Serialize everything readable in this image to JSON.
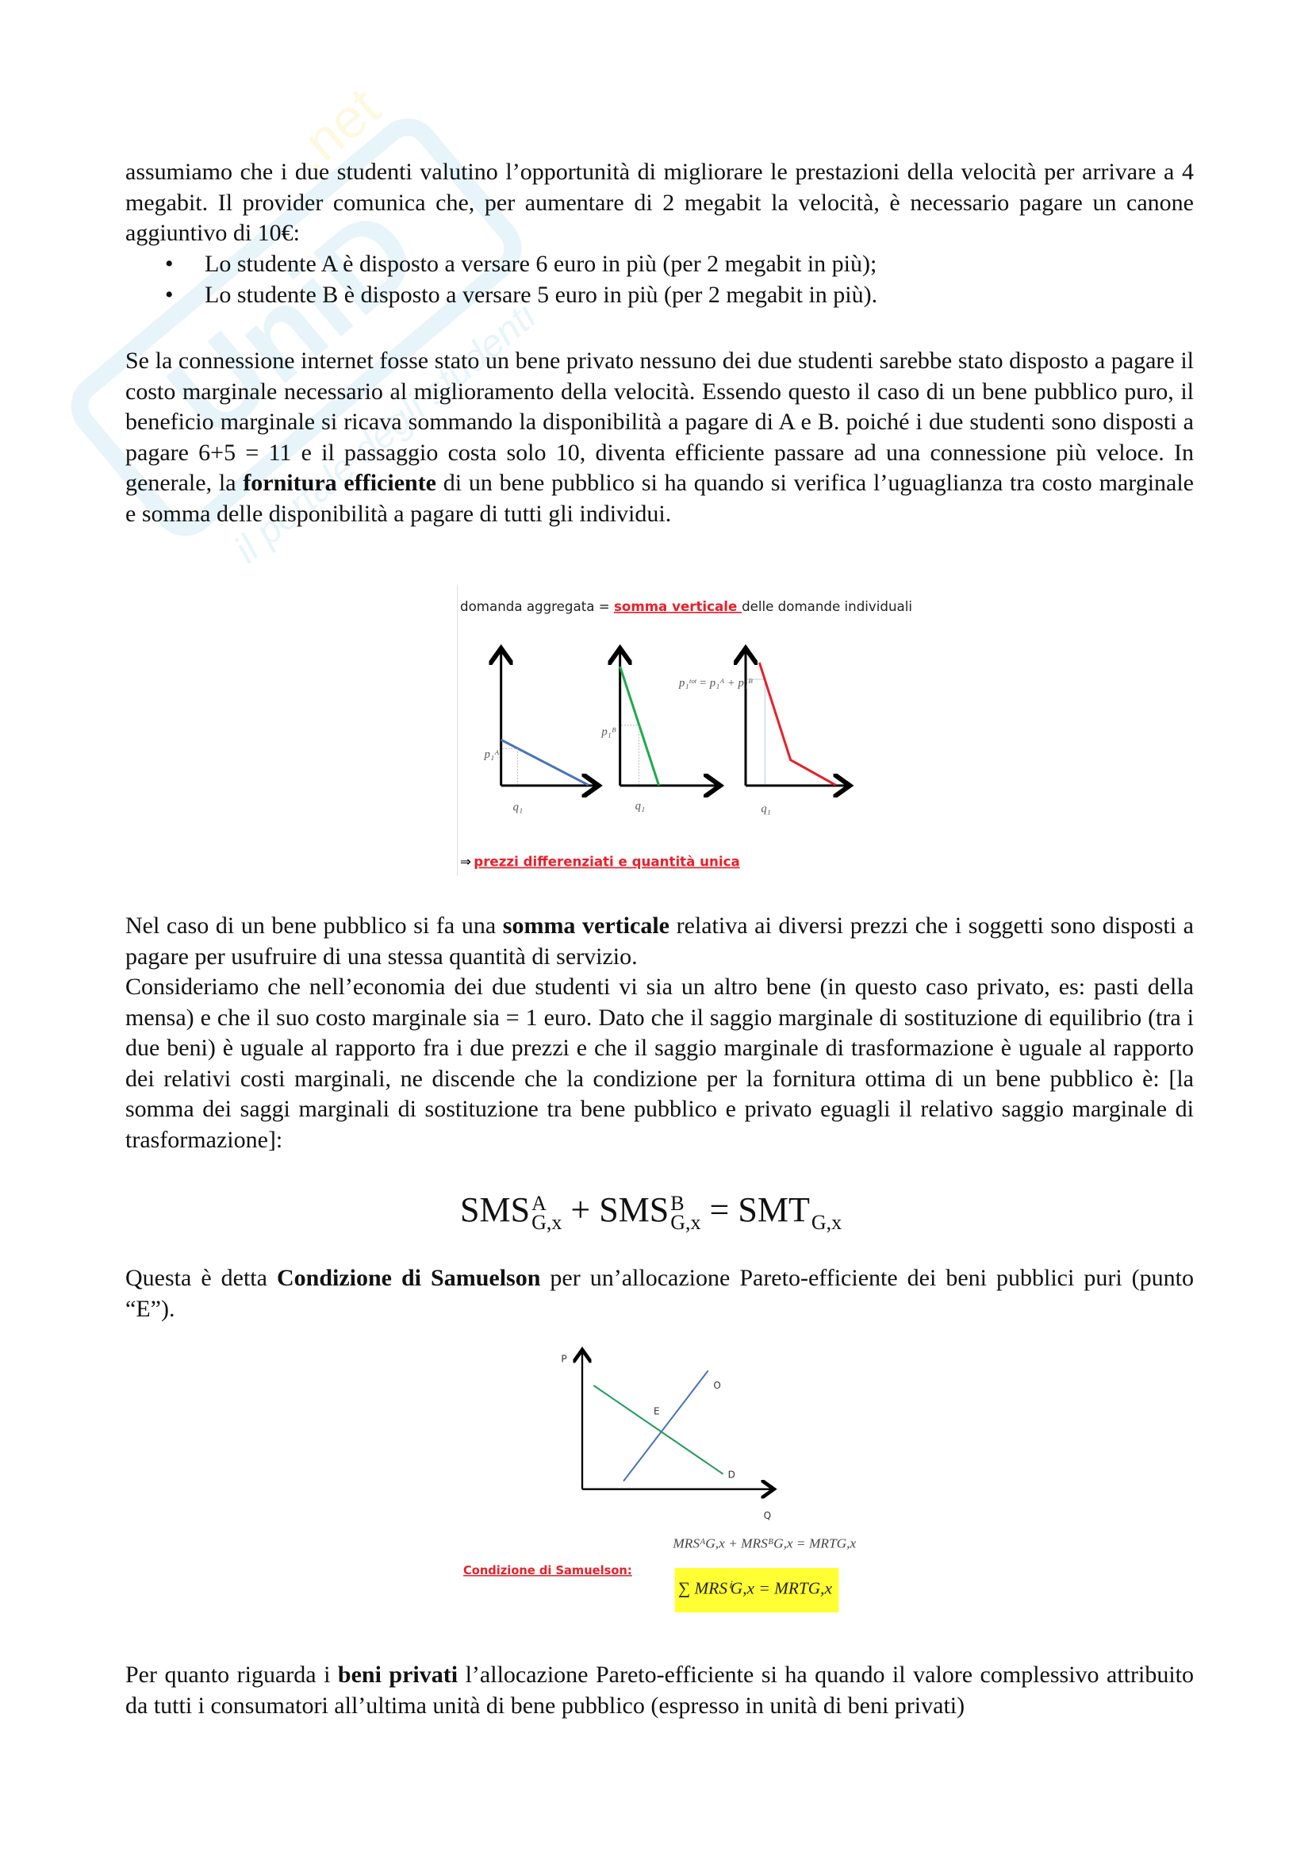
{
  "paragraphs": {
    "p1": "assumiamo che i due studenti valutino l’opportunità di migliorare le prestazioni della velocità per arrivare a 4 megabit. Il provider comunica che, per aumentare di 2 megabit la velocità, è necessario pagare un canone aggiuntivo di 10€:",
    "bullets": [
      "Lo studente A è disposto a versare 6 euro in più (per 2 megabit in più);",
      "Lo studente B è disposto a versare 5 euro in più (per 2 megabit in più)."
    ],
    "p2_a": "Se la connessione internet fosse stato un bene privato nessuno dei due studenti sarebbe stato disposto a pagare il costo marginale necessario al miglioramento della velocità. Essendo questo il caso di un bene pubblico puro, il beneficio marginale si ricava sommando la disponibilità a pagare di A e B. poiché i due studenti sono disposti a pagare 6+5 = 11 e il passaggio costa solo 10, diventa efficiente passare ad una connessione più veloce. In generale, la ",
    "p2_bold": "fornitura efficiente",
    "p2_b": " di un bene pubblico si ha quando si verifica l’uguaglianza tra costo marginale e somma delle disponibilità a pagare di tutti gli individui.",
    "p3_a": "Nel caso di un bene pubblico si fa una ",
    "p3_bold": "somma verticale",
    "p3_b": " relativa ai diversi prezzi che i soggetti sono disposti a pagare per usufruire di una stessa quantità di servizio.",
    "p4": "Consideriamo che nell’economia dei due studenti vi sia un altro bene (in questo caso privato, es: pasti della mensa) e che il suo costo marginale sia = 1 euro. Dato che il saggio marginale di sostituzione di equilibrio (tra i due beni) è uguale al rapporto fra i due prezzi e che il saggio marginale di trasformazione è uguale al rapporto dei relativi costi marginali, ne discende che la condizione per la fornitura ottima di un bene pubblico è: [la somma dei saggi marginali di sostituzione tra bene pubblico e privato eguagli il relativo saggio marginale di trasformazione]:",
    "p5_a": "Questa è detta ",
    "p5_bold": "Condizione di Samuelson",
    "p5_b": " per un’allocazione Pareto-efficiente dei beni pubblici puri (punto “E”).",
    "p6_a": "Per quanto riguarda i ",
    "p6_bold": "beni privati",
    "p6_b": " l’allocazione Pareto-efficiente si ha quando il valore complessivo attribuito da tutti i consumatori all’ultima unità di bene pubblico (espresso in unità di beni privati)"
  },
  "equation": {
    "t1": "SMS",
    "s1": "A",
    "b1": "G,x",
    "plus": "+",
    "t2": "SMS",
    "s2": "B",
    "b2": "G,x",
    "eq": "=",
    "t3": "SMT",
    "b3": "G,x"
  },
  "figure1": {
    "title_a": "domanda aggregata = ",
    "title_red": "somma verticale ",
    "title_b": "delle domande individuali",
    "label_pa": "p₁ᴬ",
    "label_pb": "p₁ᴮ",
    "label_ptot": "p₁ᵗᵒᵗ = p₁ᴬ + p₁ᴮ",
    "label_q": "q₁",
    "footer_arrow": "⇒",
    "footer_red": "prezzi differenziati e quantità unica",
    "colors": {
      "A": "#4a72b8",
      "B": "#1faa4a",
      "total": "#e8202a",
      "text_red": "#e8202a"
    }
  },
  "figure2": {
    "axis_p": "P",
    "axis_q": "Q",
    "label_o": "O",
    "label_e": "E",
    "label_d": "D",
    "formula_top": "MRSᴬG,x + MRSᴮG,x = MRTG,x",
    "caption_red": "Condizione di Samuelson:",
    "formula_sum": "∑ MRSⁱG,x = MRTG,x",
    "colors": {
      "supply": "#4a72b8",
      "demand": "#1f9a5e",
      "highlight": "#ffff33",
      "caption": "#e8202a"
    }
  },
  "watermark": {
    "brand": "UniD.net",
    "tagline": "il portale degli studenti"
  }
}
